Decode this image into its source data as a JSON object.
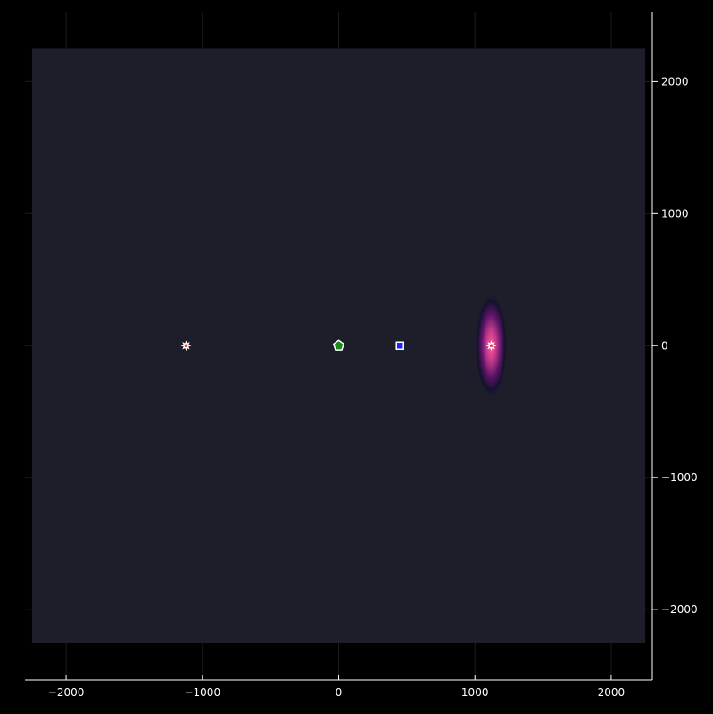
{
  "colors": {
    "background": "#000000",
    "field": "#1e1e2a",
    "axis": "#ffffff",
    "grid": "#1c1c1c",
    "hotspot_core": "#ff5a9a",
    "hotspot_mid": "#8a1f6e",
    "hotspot_outer": "#14112e",
    "star_marker": "#ffffff",
    "star_center": "#ff3b1f",
    "pentagon_fill": "#1a8a1a",
    "square_fill": "#1a22ff"
  },
  "chart_data": {
    "type": "heatmap",
    "xlim": [
      -2400,
      2400
    ],
    "ylim": [
      -2540,
      2530
    ],
    "field_extent": {
      "x": [
        -2250,
        2250
      ],
      "y": [
        -2250,
        2250
      ]
    },
    "grid": true,
    "legend": "none",
    "x_ticks": [
      {
        "value": -2000,
        "label": "−2000"
      },
      {
        "value": -1000,
        "label": "−1000"
      },
      {
        "value": 0,
        "label": "0"
      },
      {
        "value": 1000,
        "label": "1000"
      },
      {
        "value": 2000,
        "label": "2000"
      }
    ],
    "y_ticks": [
      {
        "value": 2000,
        "label": "2000"
      },
      {
        "value": 1000,
        "label": "1000"
      },
      {
        "value": 0,
        "label": "0"
      },
      {
        "value": -1000,
        "label": "−1000"
      },
      {
        "value": -2000,
        "label": "−2000"
      }
    ],
    "hotspot": {
      "x": 1120,
      "y": 0,
      "sx": 60,
      "sy": 200
    },
    "markers": [
      {
        "shape": "star",
        "x": -1120,
        "y": 0,
        "name": "star-marker-left"
      },
      {
        "shape": "pentagon",
        "x": 0,
        "y": 0,
        "name": "pentagon-marker"
      },
      {
        "shape": "square",
        "x": 450,
        "y": 0,
        "name": "square-marker"
      },
      {
        "shape": "star",
        "x": 1120,
        "y": 0,
        "name": "star-marker-right"
      }
    ]
  }
}
